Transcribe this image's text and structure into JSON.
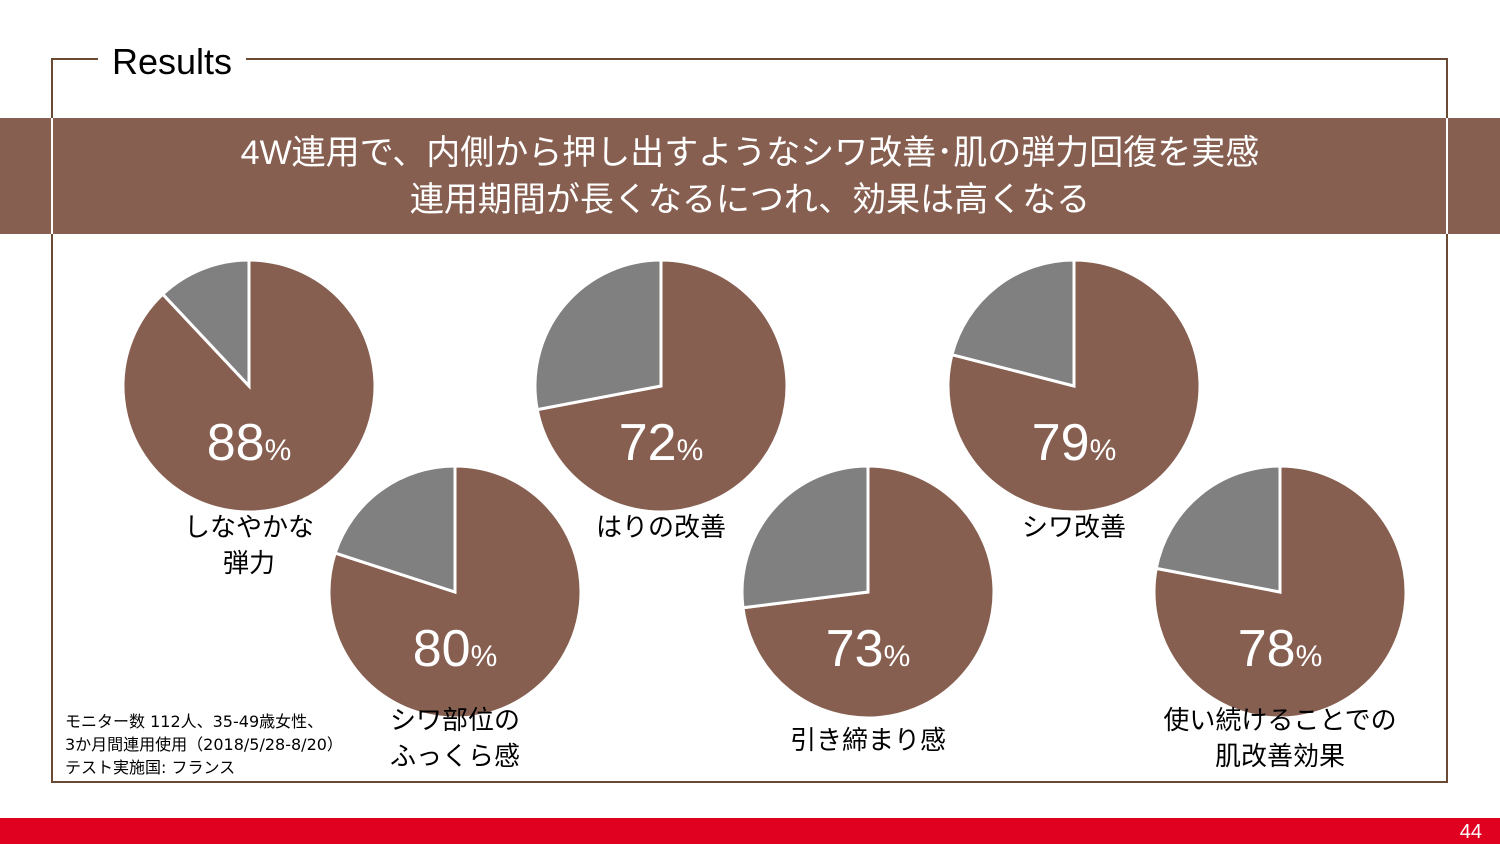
{
  "section_title": "Results",
  "headline": {
    "line1": "4W連用で、内側から押し出すようなシワ改善･肌の弾力回復を実感",
    "line2": "連用期間が長くなるにつれ、効果は高くなる"
  },
  "colors": {
    "accent": "#865f51",
    "rest": "#808080",
    "frame": "#6b4a33",
    "footer": "#e0001f"
  },
  "chart_data": {
    "type": "pie",
    "unit": "%",
    "series": [
      {
        "name": "しなやかな弾力",
        "label_lines": [
          "しなやかな",
          "弾力"
        ],
        "value": 88
      },
      {
        "name": "シワ部位のふっくら感",
        "label_lines": [
          "シワ部位の",
          "ふっくら感"
        ],
        "value": 80
      },
      {
        "name": "はりの改善",
        "label_lines": [
          "はりの改善"
        ],
        "value": 72
      },
      {
        "name": "引き締まり感",
        "label_lines": [
          "引き締まり感"
        ],
        "value": 73
      },
      {
        "name": "シワ改善",
        "label_lines": [
          "シワ改善"
        ],
        "value": 79
      },
      {
        "name": "使い続けることでの肌改善効果",
        "label_lines": [
          "使い続けることでの",
          "肌改善効果"
        ],
        "value": 78
      }
    ]
  },
  "note": {
    "line1": "モニター数 112人、35-49歳女性、",
    "line2": "3か月間連用使用（2018/5/28-8/20）",
    "line3": "テスト実施国: フランス"
  },
  "page_number": "44"
}
